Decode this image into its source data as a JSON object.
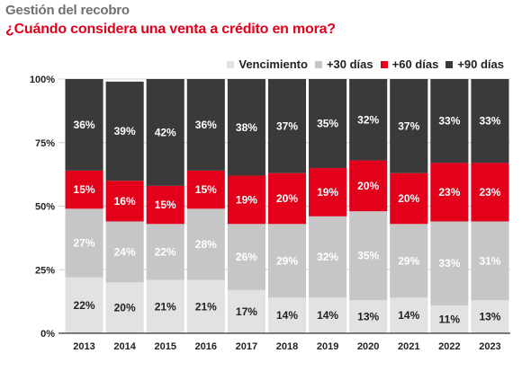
{
  "header": {
    "title": "Gestión del recobro",
    "subtitle": "¿Cuándo considera una venta a crédito en mora?"
  },
  "colors": {
    "vencimiento": "#e2e2e2",
    "d30": "#c6c6c6",
    "d60": "#e3001b",
    "d90": "#3a3a3a",
    "grid": "#d0d0d0",
    "axis": "#333333"
  },
  "chart_data": {
    "type": "bar",
    "stacked": true,
    "categories": [
      "2013",
      "2014",
      "2015",
      "2016",
      "2017",
      "2018",
      "2019",
      "2020",
      "2021",
      "2022",
      "2023"
    ],
    "series": [
      {
        "name": "Vencimiento",
        "values": [
          22,
          20,
          21,
          21,
          17,
          14,
          14,
          13,
          14,
          11,
          13
        ],
        "color": "#e2e2e2",
        "label_color": "#222222"
      },
      {
        "name": "+30 días",
        "values": [
          27,
          24,
          22,
          28,
          26,
          29,
          32,
          35,
          29,
          33,
          31
        ],
        "color": "#c6c6c6",
        "label_color": "#ffffff"
      },
      {
        "name": "+60 días",
        "values": [
          15,
          16,
          15,
          15,
          19,
          20,
          19,
          20,
          20,
          23,
          23
        ],
        "color": "#e3001b",
        "label_color": "#ffffff"
      },
      {
        "name": "+90 días",
        "values": [
          36,
          39,
          42,
          36,
          38,
          37,
          35,
          32,
          37,
          33,
          33
        ],
        "color": "#3a3a3a",
        "label_color": "#ffffff"
      }
    ],
    "labels": [
      [
        "22%",
        "20%",
        "21%",
        "21%",
        "17%",
        "14%",
        "14%",
        "13%",
        "14%",
        "11%",
        "13%"
      ],
      [
        "27%",
        "24%",
        "22%",
        "28%",
        "26%",
        "29%",
        "32%",
        "35%",
        "29%",
        "33%",
        "31%"
      ],
      [
        "15%",
        "16%",
        "15%",
        "15%",
        "19%",
        "20%",
        "19%",
        "20%",
        "20%",
        "23%",
        "23%"
      ],
      [
        "36%",
        "39%",
        "42%",
        "36%",
        "38%",
        "37%",
        "35%",
        "32%",
        "37%",
        "33%",
        "33%"
      ]
    ],
    "ylim": [
      0,
      100
    ],
    "yticks": [
      0,
      25,
      50,
      75,
      100
    ],
    "ytick_labels": [
      "0%",
      "25%",
      "50%",
      "75%",
      "100%"
    ],
    "grid": true,
    "legend_position": "top-right"
  }
}
